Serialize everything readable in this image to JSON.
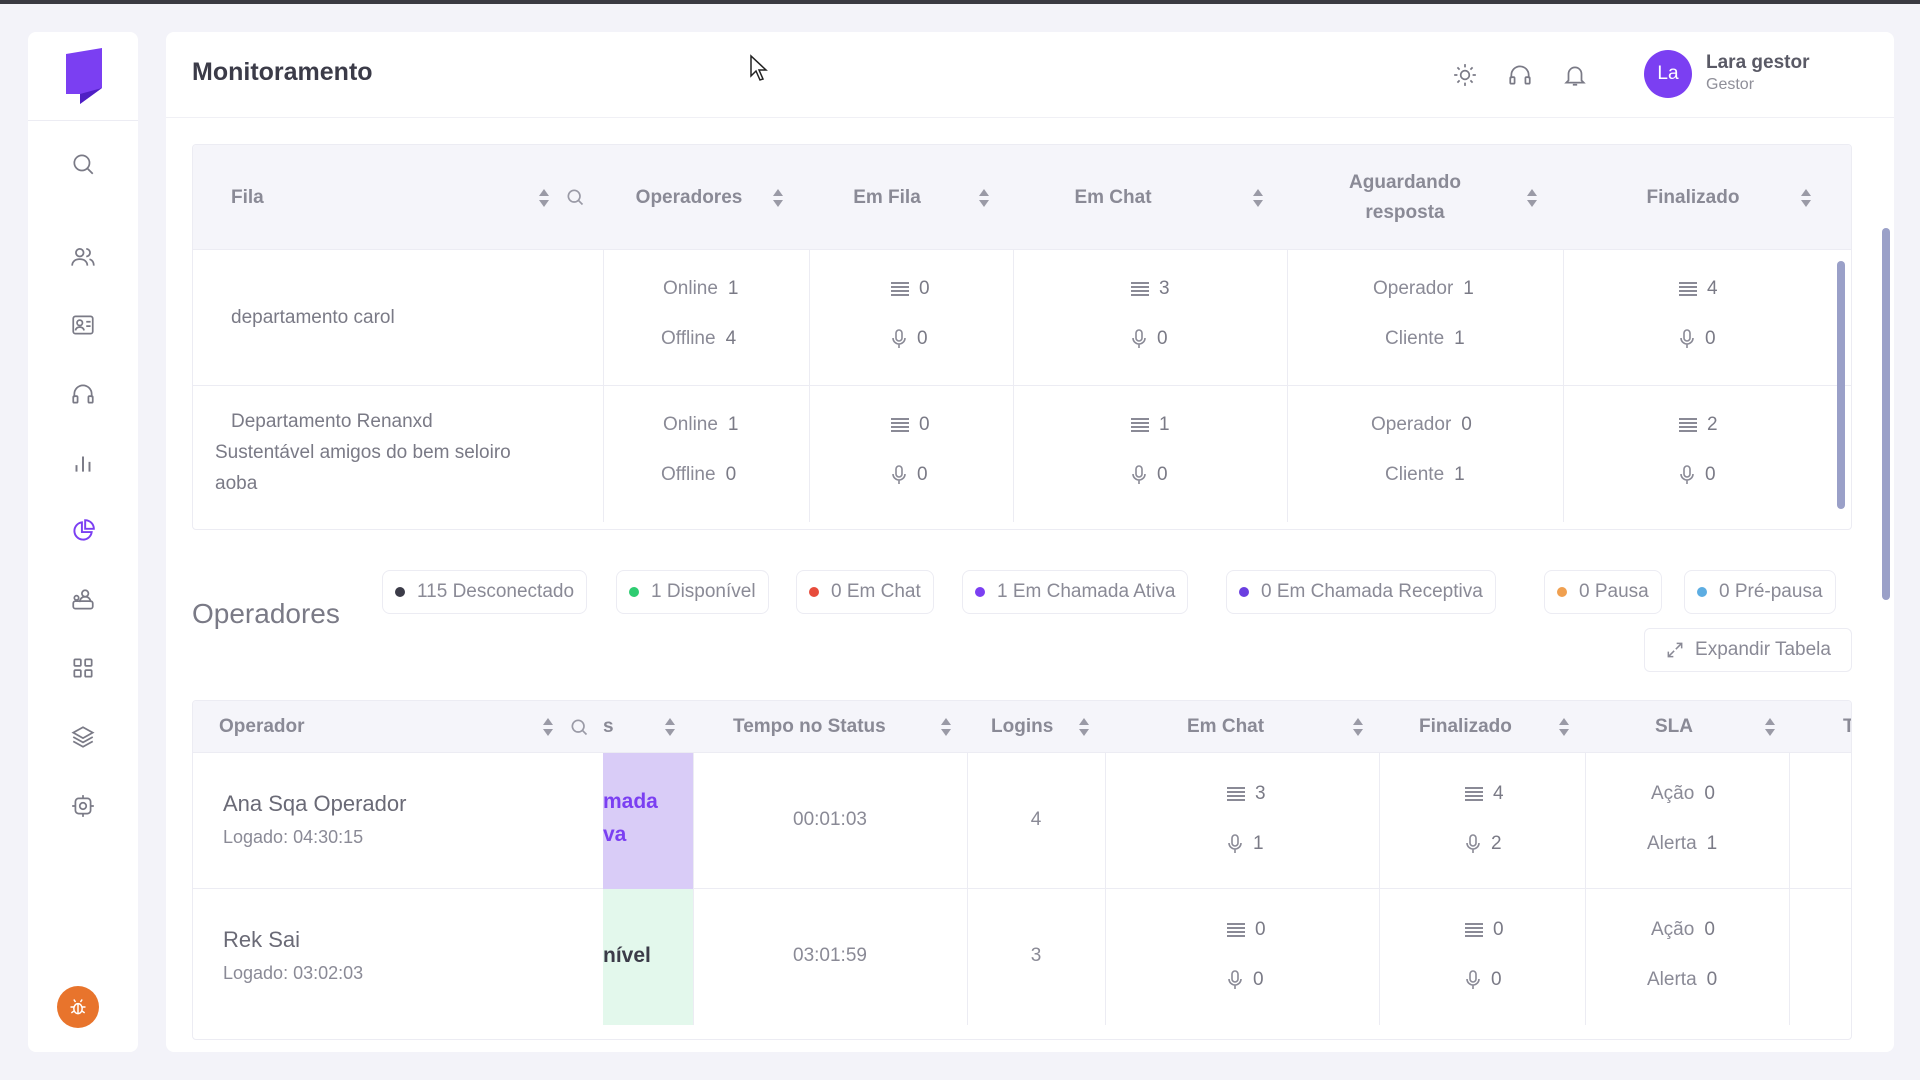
{
  "sidebar": {
    "icons": [
      "search-icon",
      "users-icon",
      "contacts-icon",
      "headset-icon",
      "bar-chart-icon",
      "pie-chart-icon",
      "team-icon",
      "grid-icon",
      "layers-icon",
      "settings-icon"
    ],
    "active_icon": "pie-chart-icon",
    "brand_color": "#7b3ff2"
  },
  "header": {
    "title": "Monitoramento",
    "user": {
      "initials": "La",
      "name": "Lara gestor",
      "role": "Gestor"
    }
  },
  "queues": {
    "columns": [
      "Fila",
      "Operadores",
      "Em Fila",
      "Em Chat",
      "Aguardando resposta",
      "Finalizado"
    ],
    "rows": [
      {
        "name": "departamento carol",
        "online_label": "Online",
        "online": "1",
        "offline_label": "Offline",
        "offline": "4",
        "em_fila_chat": "0",
        "em_fila_voice": "0",
        "em_chat_chat": "3",
        "em_chat_voice": "0",
        "operador_label": "Operador",
        "operador": "1",
        "cliente_label": "Cliente",
        "cliente": "1",
        "finalizado_chat": "4",
        "finalizado_voice": "0"
      },
      {
        "name_line1": "Departamento Renanxd",
        "name_line2": "Sustentável amigos do bem seloiro",
        "name_line3": "aoba",
        "online_label": "Online",
        "online": "1",
        "offline_label": "Offline",
        "offline": "0",
        "em_fila_chat": "0",
        "em_fila_voice": "0",
        "em_chat_chat": "1",
        "em_chat_voice": "0",
        "operador_label": "Operador",
        "operador": "0",
        "cliente_label": "Cliente",
        "cliente": "1",
        "finalizado_chat": "2",
        "finalizado_voice": "0"
      }
    ]
  },
  "status_chips": [
    {
      "label": "115 Desconectado",
      "color": "#3b3b48"
    },
    {
      "label": "1 Disponível",
      "color": "#2ecc71"
    },
    {
      "label": "0 Em Chat",
      "color": "#e74c3c"
    },
    {
      "label": "1 Em Chamada Ativa",
      "color": "#7b3ff2"
    },
    {
      "label": "0 Em Chamada Receptiva",
      "color": "#6a3fe0"
    },
    {
      "label": "0 Pausa",
      "color": "#f0a050"
    },
    {
      "label": "0 Pré-pausa",
      "color": "#5dade2"
    }
  ],
  "operators": {
    "section_title": "Operadores",
    "expand_label": "Expandir Tabela",
    "columns": [
      "Operador",
      "s",
      "Tempo no Status",
      "Logins",
      "Em Chat",
      "Finalizado",
      "SLA",
      "T"
    ],
    "rows": [
      {
        "name": "Ana Sqa Operador",
        "logged": "Logado: 04:30:15",
        "status_line1": "mada",
        "status_line2": "va",
        "status_bg": "#d9ccf7",
        "status_color": "#7b3ff2",
        "tempo": "00:01:03",
        "logins": "4",
        "em_chat_chat": "3",
        "em_chat_voice": "1",
        "finalizado_chat": "4",
        "finalizado_voice": "2",
        "acao_label": "Ação",
        "acao": "0",
        "alerta_label": "Alerta",
        "alerta": "1"
      },
      {
        "name": "Rek Sai",
        "logged": "Logado: 03:02:03",
        "status_line1": "nível",
        "status_line2": "",
        "status_bg": "#e3f8ec",
        "status_color": "#3b3b48",
        "tempo": "03:01:59",
        "logins": "3",
        "em_chat_chat": "0",
        "em_chat_voice": "0",
        "finalizado_chat": "0",
        "finalizado_voice": "0",
        "acao_label": "Ação",
        "acao": "0",
        "alerta_label": "Alerta",
        "alerta": "0"
      }
    ]
  }
}
